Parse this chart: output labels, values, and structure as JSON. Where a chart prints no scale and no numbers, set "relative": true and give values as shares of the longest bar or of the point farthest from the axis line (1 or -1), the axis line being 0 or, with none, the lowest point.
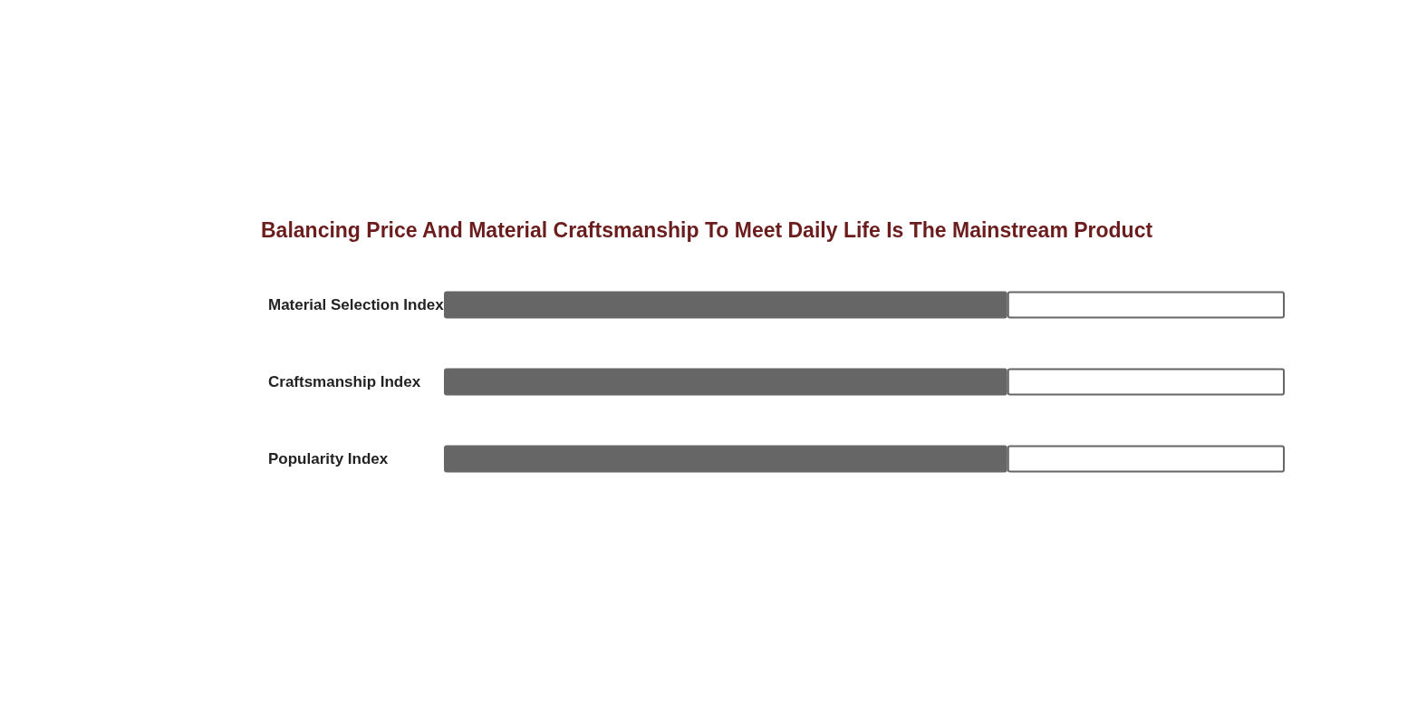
{
  "chart_data": {
    "type": "bar",
    "title": "Balancing Price And Material Craftsmanship To Meet Daily Life Is The Mainstream Product",
    "orientation": "horizontal",
    "stacked": true,
    "relative": true,
    "categories": [
      "Material Selection Index",
      "Craftsmanship Index",
      "Popularity Index"
    ],
    "series": [
      {
        "color": "#666666",
        "values": [
          0.67,
          0.67,
          0.67
        ]
      },
      {
        "color": "#ffffff",
        "values": [
          0.33,
          0.33,
          0.33
        ]
      }
    ]
  }
}
